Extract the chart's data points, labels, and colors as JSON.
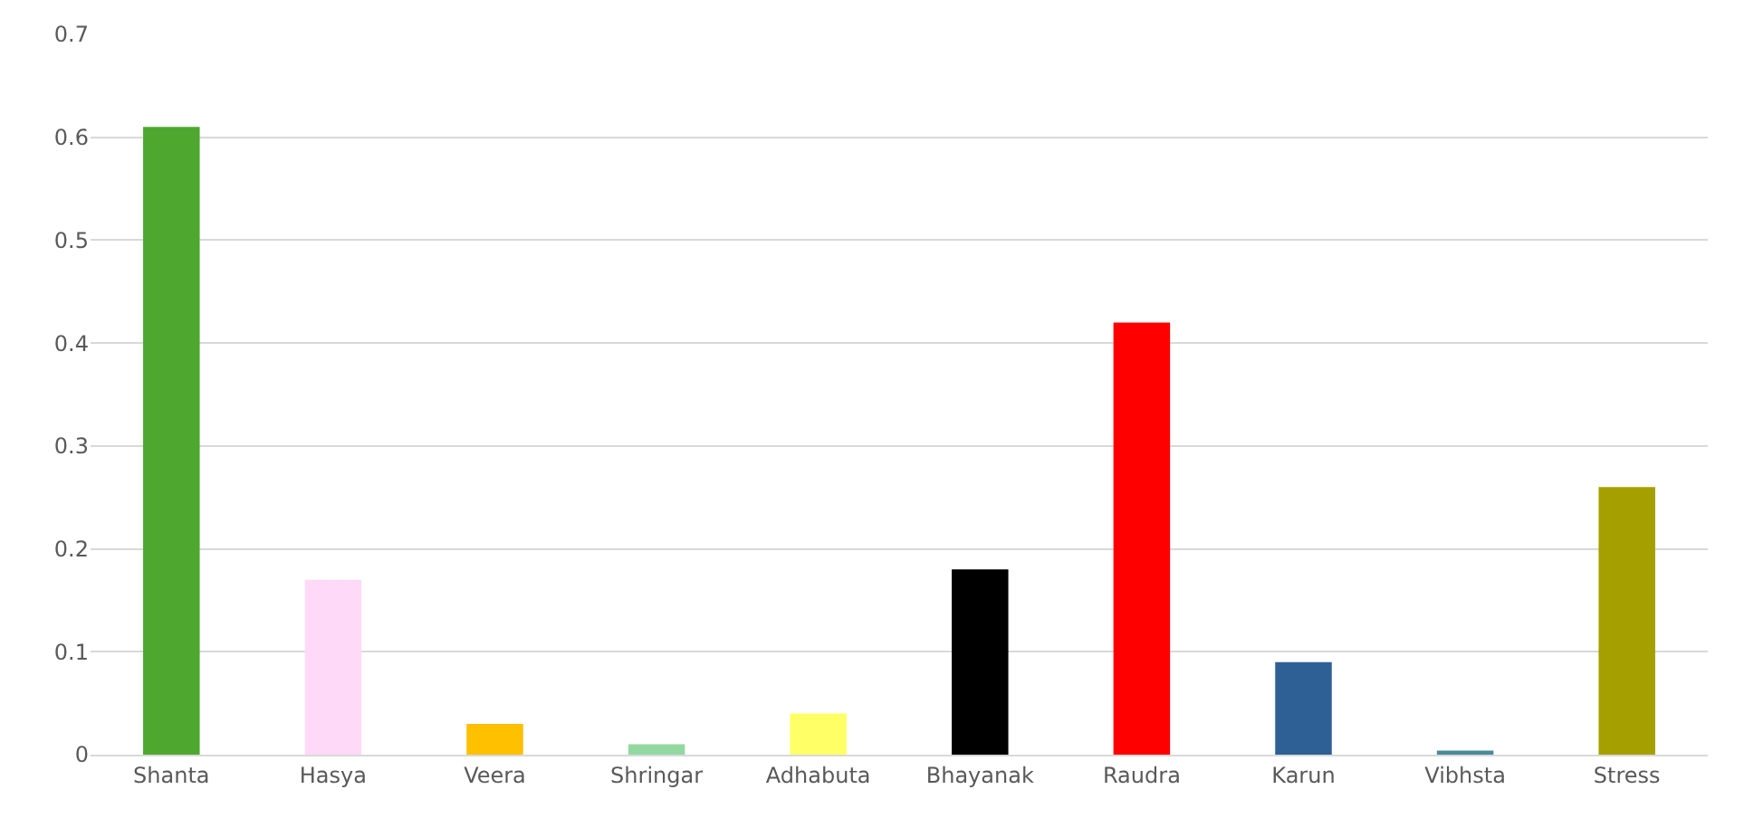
{
  "chart_data": {
    "type": "bar",
    "categories": [
      "Shanta",
      "Hasya",
      "Veera",
      "Shringar",
      "Adhabuta",
      "Bhayanak",
      "Raudra",
      "Karun",
      "Vibhsta",
      "Stress"
    ],
    "values": [
      0.61,
      0.17,
      0.03,
      0.01,
      0.04,
      0.18,
      0.42,
      0.09,
      0.004,
      0.26
    ],
    "colors": [
      "#4ea72e",
      "#ffd9f8",
      "#ffc000",
      "#92d8a0",
      "#ffff66",
      "#000000",
      "#ff0000",
      "#2e6095",
      "#4a8a9a",
      "#a5a000"
    ],
    "ylim": [
      0,
      0.7
    ],
    "yticks": [
      0,
      0.1,
      0.2,
      0.3,
      0.4,
      0.5,
      0.6,
      0.7
    ],
    "grid": "y",
    "legend": false
  }
}
